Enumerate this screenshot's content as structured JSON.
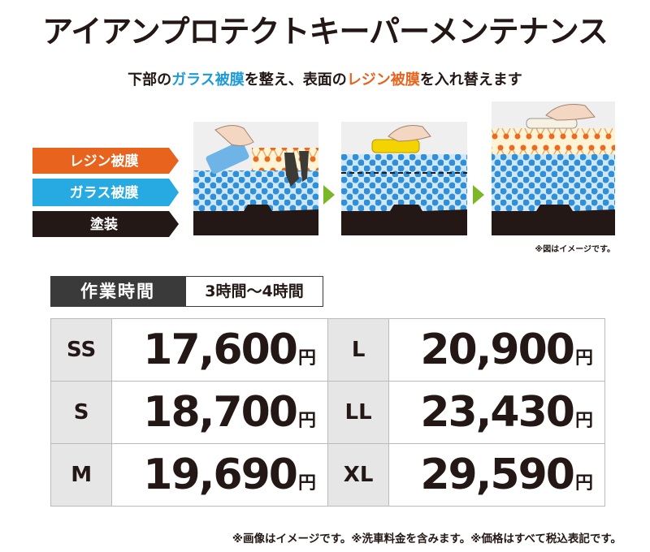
{
  "header": {
    "title": "アイアンプロテクトキーパーメンテナンス",
    "subtitle": [
      "下部の",
      "ガラス被膜",
      "を整え、表面の",
      "レジン被膜",
      "を入れ替えます"
    ]
  },
  "diagram": {
    "layers": [
      "レジン被膜",
      "ガラス被膜",
      "塗装"
    ],
    "note": "※図はイメージです。"
  },
  "work_time": {
    "label": "作業時間",
    "value": "3時間〜4時間"
  },
  "price_table": {
    "currency": "円",
    "rows": [
      [
        {
          "size": "SS",
          "price": "17,600"
        },
        {
          "size": "L",
          "price": "20,900"
        }
      ],
      [
        {
          "size": "S",
          "price": "18,700"
        },
        {
          "size": "LL",
          "price": "23,430"
        }
      ],
      [
        {
          "size": "M",
          "price": "19,690"
        },
        {
          "size": "XL",
          "price": "29,590"
        }
      ]
    ]
  },
  "footnote": "※画像はイメージです。※洗車料金を含みます。※価格はすべて税込表記です。"
}
